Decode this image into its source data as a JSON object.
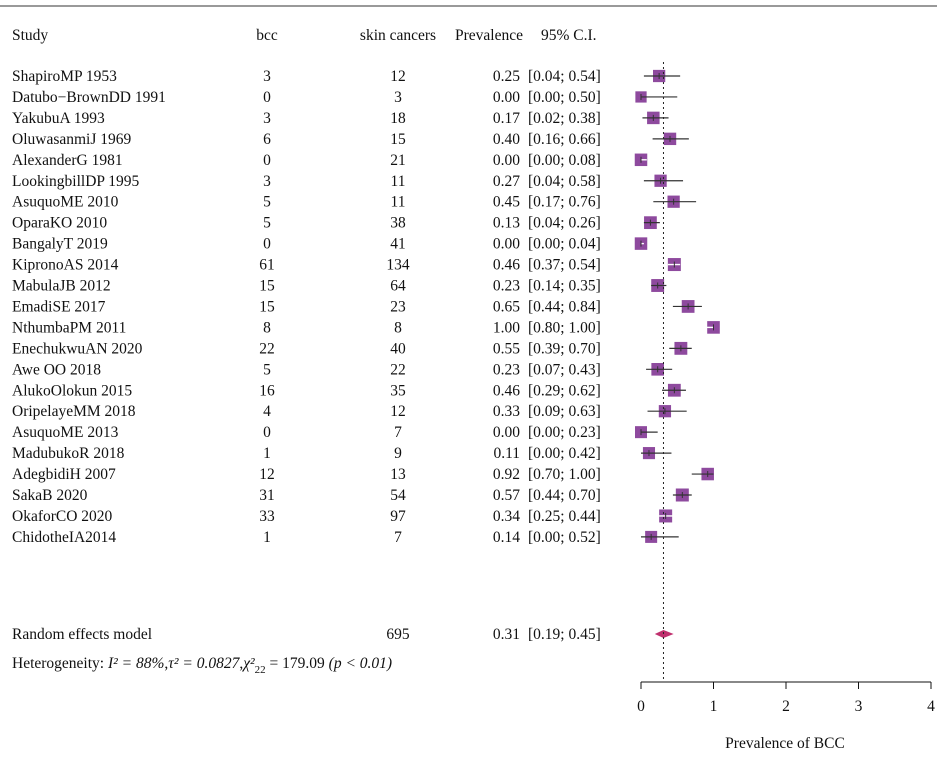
{
  "header": {
    "study": "Study",
    "bcc": "bcc",
    "total": "skin cancers",
    "prevalence": "Prevalence",
    "ci": "95% C.I."
  },
  "chart_data": {
    "type": "forest",
    "studies": [
      {
        "study": "ShapiroMP 1953",
        "bcc": "3",
        "total": "12",
        "prev": "0.25",
        "ci": "[0.04; 0.54]",
        "est": 0.25,
        "lo": 0.04,
        "hi": 0.54,
        "w": 0.85
      },
      {
        "study": "Datubo−BrownDD 1991",
        "bcc": "0",
        "total": "3",
        "prev": "0.00",
        "ci": "[0.00; 0.50]",
        "est": 0.0,
        "lo": 0.0,
        "hi": 0.5,
        "w": 0.65
      },
      {
        "study": "YakubuA 1993",
        "bcc": "3",
        "total": "18",
        "prev": "0.17",
        "ci": "[0.02; 0.38]",
        "est": 0.17,
        "lo": 0.02,
        "hi": 0.38,
        "w": 0.9
      },
      {
        "study": "OluwasanmiJ 1969",
        "bcc": "6",
        "total": "15",
        "prev": "0.40",
        "ci": "[0.16; 0.66]",
        "est": 0.4,
        "lo": 0.16,
        "hi": 0.66,
        "w": 0.88
      },
      {
        "study": "AlexanderG 1981",
        "bcc": "0",
        "total": "21",
        "prev": "0.00",
        "ci": "[0.00; 0.08]",
        "est": 0.0,
        "lo": 0.0,
        "hi": 0.08,
        "w": 0.9
      },
      {
        "study": "LookingbillDP 1995",
        "bcc": "3",
        "total": "11",
        "prev": "0.27",
        "ci": "[0.04; 0.58]",
        "est": 0.27,
        "lo": 0.04,
        "hi": 0.58,
        "w": 0.85
      },
      {
        "study": "AsuquoME 2010",
        "bcc": "5",
        "total": "11",
        "prev": "0.45",
        "ci": "[0.17; 0.76]",
        "est": 0.45,
        "lo": 0.17,
        "hi": 0.76,
        "w": 0.85
      },
      {
        "study": "OparaKO 2010",
        "bcc": "5",
        "total": "38",
        "prev": "0.13",
        "ci": "[0.04; 0.26]",
        "est": 0.13,
        "lo": 0.04,
        "hi": 0.26,
        "w": 0.95
      },
      {
        "study": "BangalyT 2019",
        "bcc": "0",
        "total": "41",
        "prev": "0.00",
        "ci": "[0.00; 0.04]",
        "est": 0.0,
        "lo": 0.0,
        "hi": 0.04,
        "w": 0.9
      },
      {
        "study": "KipronoAS 2014",
        "bcc": "61",
        "total": "134",
        "prev": "0.46",
        "ci": "[0.37; 0.54]",
        "est": 0.46,
        "lo": 0.37,
        "hi": 0.54,
        "w": 1.0
      },
      {
        "study": "MabulaJB 2012",
        "bcc": "15",
        "total": "64",
        "prev": "0.23",
        "ci": "[0.14; 0.35]",
        "est": 0.23,
        "lo": 0.14,
        "hi": 0.35,
        "w": 0.98
      },
      {
        "study": "EmadiSE 2017",
        "bcc": "15",
        "total": "23",
        "prev": "0.65",
        "ci": "[0.44; 0.84]",
        "est": 0.65,
        "lo": 0.44,
        "hi": 0.84,
        "w": 0.95
      },
      {
        "study": "NthumbaPM 2011",
        "bcc": "8",
        "total": "8",
        "prev": "1.00",
        "ci": "[0.80; 1.00]",
        "est": 1.0,
        "lo": 0.8,
        "hi": 1.0,
        "w": 0.92
      },
      {
        "study": "EnechukwuAN 2020",
        "bcc": "22",
        "total": "40",
        "prev": "0.55",
        "ci": "[0.39; 0.70]",
        "est": 0.55,
        "lo": 0.39,
        "hi": 0.7,
        "w": 0.97
      },
      {
        "study": "Awe OO 2018",
        "bcc": "5",
        "total": "22",
        "prev": "0.23",
        "ci": "[0.07; 0.43]",
        "est": 0.23,
        "lo": 0.07,
        "hi": 0.43,
        "w": 0.92
      },
      {
        "study": "AlukoOlokun 2015",
        "bcc": "16",
        "total": "35",
        "prev": "0.46",
        "ci": "[0.29; 0.62]",
        "est": 0.46,
        "lo": 0.29,
        "hi": 0.62,
        "w": 0.96
      },
      {
        "study": "OripelayeMM 2018",
        "bcc": "4",
        "total": "12",
        "prev": "0.33",
        "ci": "[0.09; 0.63]",
        "est": 0.33,
        "lo": 0.09,
        "hi": 0.63,
        "w": 0.85
      },
      {
        "study": "AsuquoME 2013",
        "bcc": "0",
        "total": "7",
        "prev": "0.00",
        "ci": "[0.00; 0.23]",
        "est": 0.0,
        "lo": 0.0,
        "hi": 0.23,
        "w": 0.8
      },
      {
        "study": "MadubukoR 2018",
        "bcc": "1",
        "total": "9",
        "prev": "0.11",
        "ci": "[0.00; 0.42]",
        "est": 0.11,
        "lo": 0.0,
        "hi": 0.42,
        "w": 0.82
      },
      {
        "study": "AdegbidiH 2007",
        "bcc": "12",
        "total": "13",
        "prev": "0.92",
        "ci": "[0.70; 1.00]",
        "est": 0.92,
        "lo": 0.7,
        "hi": 1.0,
        "w": 0.9
      },
      {
        "study": "SakaB 2020",
        "bcc": "31",
        "total": "54",
        "prev": "0.57",
        "ci": "[0.44; 0.70]",
        "est": 0.57,
        "lo": 0.44,
        "hi": 0.7,
        "w": 1.0
      },
      {
        "study": "OkaforCO 2020",
        "bcc": "33",
        "total": "97",
        "prev": "0.34",
        "ci": "[0.25; 0.44]",
        "est": 0.34,
        "lo": 0.25,
        "hi": 0.44,
        "w": 1.0
      },
      {
        "study": "ChidotheIA2014",
        "bcc": "1",
        "total": "7",
        "prev": "0.14",
        "ci": "[0.00; 0.52]",
        "est": 0.14,
        "lo": 0.0,
        "hi": 0.52,
        "w": 0.8
      }
    ],
    "pooled": {
      "label": "Random effects model",
      "total": "695",
      "prev": "0.31",
      "ci": "[0.19; 0.45]",
      "est": 0.31,
      "lo": 0.19,
      "hi": 0.45
    },
    "heterogeneity": {
      "prefix": "Heterogeneity: ",
      "i2": "I² = 88%",
      "tau2": "τ² = 0.0827",
      "chi2": "χ²",
      "chi_df": "22",
      "chi_val": " = 179.09 ",
      "p": "(p < 0.01)"
    },
    "xaxis": {
      "label": "Prevalence of BCC",
      "ticks": [
        0,
        1,
        2,
        3,
        4
      ],
      "xlim": [
        0,
        4
      ],
      "reference": 0.31
    },
    "colors": {
      "square": "#8e4a9e",
      "ci_line": "#333333",
      "diamond": "#c0306e",
      "refline": "#222222"
    }
  }
}
